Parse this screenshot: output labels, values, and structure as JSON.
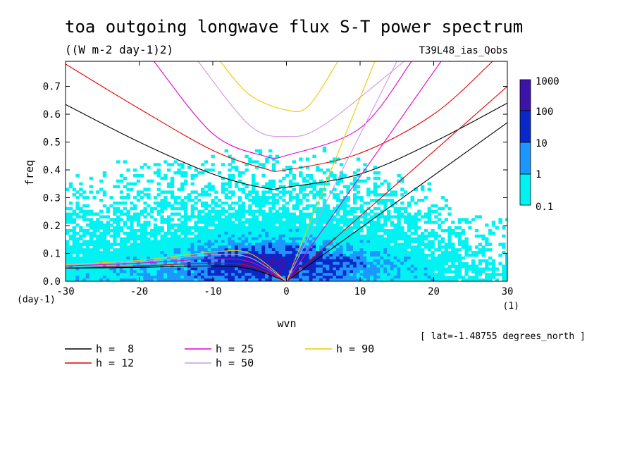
{
  "title": "toa outgoing longwave flux S-T power spectrum",
  "units": "((W m-2 day-1)2)",
  "dataset": "T39L48_ias_Qobs",
  "colors": {
    "c01": "#00f2f2",
    "c1": "#1e96ff",
    "c10": "#0a28c8",
    "c100": "#3c14aa",
    "h8": "#000000",
    "h12": "#e60000",
    "h25": "#e600c8",
    "h50": "#d296e6",
    "h90": "#f0c800"
  },
  "chart_data": {
    "type": "heatmap",
    "title": "toa outgoing longwave flux S-T power spectrum",
    "xlabel": "wvn",
    "ylabel": "freq",
    "x_unit": "(1)",
    "y_unit": "(day-1)",
    "xlim": [
      -30,
      30
    ],
    "ylim": [
      0,
      0.79
    ],
    "x_ticks": [
      "-30",
      "-20",
      "-10",
      "0",
      "10",
      "20",
      "30"
    ],
    "y_ticks": [
      "0.0",
      "0.1",
      "0.2",
      "0.3",
      "0.4",
      "0.5",
      "0.6",
      "0.7"
    ],
    "x_tick_values": [
      -30,
      -20,
      -10,
      0,
      10,
      20,
      30
    ],
    "y_tick_values": [
      0,
      0.1,
      0.2,
      0.3,
      0.4,
      0.5,
      0.6,
      0.7
    ],
    "colorbar": {
      "levels": [
        "1000",
        "100",
        "10",
        "1",
        "0.1"
      ],
      "bands": [
        {
          "from": 0.1,
          "to": 1
        },
        {
          "from": 1,
          "to": 10
        },
        {
          "from": 10,
          "to": 100
        },
        {
          "from": 100,
          "to": 1000
        }
      ]
    },
    "annotation": "[ lat=-1.48755 degrees_north ]",
    "dispersion_curves": [
      {
        "name": "h =  8",
        "h": 8,
        "kelvin": [
          [
            0,
            0
          ],
          [
            30,
            0.57
          ]
        ],
        "ig": [
          [
            -30,
            0.635
          ],
          [
            -20,
            0.5
          ],
          [
            -10,
            0.385
          ],
          [
            -3,
            0.335
          ],
          [
            0,
            0.338
          ],
          [
            10,
            0.385
          ],
          [
            20,
            0.5
          ],
          [
            30,
            0.64
          ]
        ],
        "rossby": [
          [
            -30,
            0.047
          ],
          [
            -20,
            0.05
          ],
          [
            -10,
            0.055
          ],
          [
            -5,
            0.045
          ],
          [
            0,
            0
          ]
        ]
      },
      {
        "name": "h = 12",
        "h": 12,
        "kelvin": [
          [
            0,
            0
          ],
          [
            30,
            0.7
          ]
        ],
        "ig": [
          [
            -30,
            0.78
          ],
          [
            -20,
            0.62
          ],
          [
            -10,
            0.47
          ],
          [
            -3,
            0.405
          ],
          [
            0,
            0.4
          ],
          [
            10,
            0.46
          ],
          [
            20,
            0.6
          ],
          [
            28,
            0.79
          ]
        ],
        "rossby": [
          [
            -30,
            0.048
          ],
          [
            -20,
            0.055
          ],
          [
            -10,
            0.065
          ],
          [
            -5,
            0.055
          ],
          [
            0,
            0
          ]
        ]
      },
      {
        "name": "h = 25",
        "h": 25,
        "kelvin": [
          [
            0,
            0
          ],
          [
            21,
            0.79
          ]
        ],
        "ig": [
          [
            -18,
            0.79
          ],
          [
            -10,
            0.53
          ],
          [
            -3,
            0.45
          ],
          [
            0,
            0.452
          ],
          [
            10,
            0.55
          ],
          [
            17,
            0.79
          ]
        ],
        "rossby": [
          [
            -30,
            0.055
          ],
          [
            -20,
            0.065
          ],
          [
            -10,
            0.08
          ],
          [
            -5,
            0.07
          ],
          [
            0,
            0
          ]
        ]
      },
      {
        "name": "h = 50",
        "h": 50,
        "kelvin": [
          [
            0,
            0
          ],
          [
            15,
            0.79
          ]
        ],
        "ig": [
          [
            -12,
            0.79
          ],
          [
            -5,
            0.56
          ],
          [
            0,
            0.52
          ],
          [
            5,
            0.56
          ],
          [
            16,
            0.79
          ]
        ],
        "rossby": [
          [
            -30,
            0.058
          ],
          [
            -20,
            0.07
          ],
          [
            -10,
            0.095
          ],
          [
            -5,
            0.085
          ],
          [
            0,
            0
          ]
        ]
      },
      {
        "name": "h = 90",
        "h": 90,
        "kelvin": [
          [
            0,
            0
          ],
          [
            12,
            0.79
          ]
        ],
        "ig": [
          [
            -9,
            0.79
          ],
          [
            -5,
            0.67
          ],
          [
            0,
            0.615
          ],
          [
            3,
            0.63
          ],
          [
            7,
            0.79
          ]
        ],
        "rossby": [
          [
            -30,
            0.06
          ],
          [
            -20,
            0.075
          ],
          [
            -10,
            0.105
          ],
          [
            -5,
            0.1
          ],
          [
            0,
            0
          ]
        ]
      }
    ]
  },
  "legend": [
    {
      "label": "h =  8",
      "color_key": "h8"
    },
    {
      "label": "h = 25",
      "color_key": "h25"
    },
    {
      "label": "h = 90",
      "color_key": "h90"
    },
    {
      "label": "h = 12",
      "color_key": "h12"
    },
    {
      "label": "h = 50",
      "color_key": "h50"
    }
  ]
}
